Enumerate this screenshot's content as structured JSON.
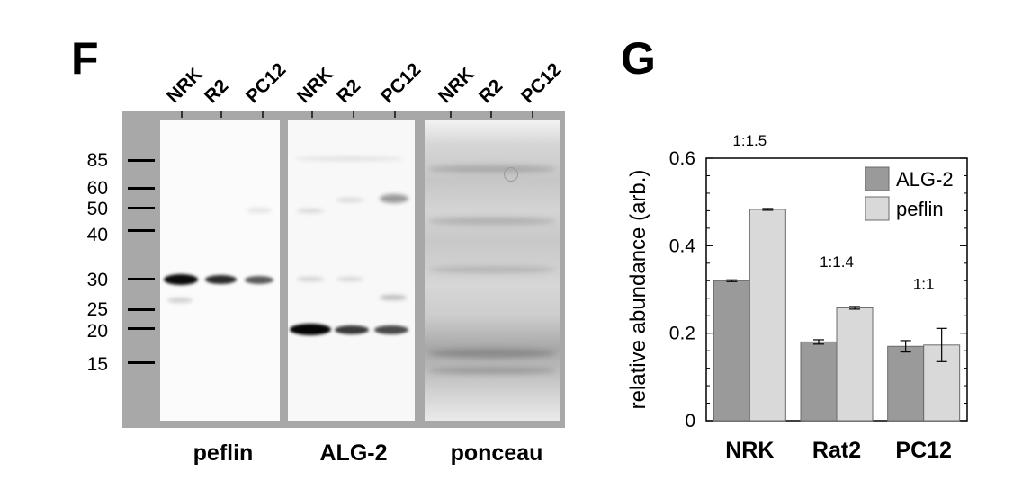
{
  "panel_f": {
    "letter": "F",
    "lane_groups": [
      {
        "lanes": [
          "NRK",
          "R2",
          "PC12"
        ],
        "label": "peflin"
      },
      {
        "lanes": [
          "NRK",
          "R2",
          "PC12"
        ],
        "label": "ALG-2"
      },
      {
        "lanes": [
          "NRK",
          "R2",
          "PC12"
        ],
        "label": "ponceau"
      }
    ],
    "mw_markers": [
      "85",
      "60",
      "50",
      "40",
      "30",
      "25",
      "20",
      "15"
    ],
    "frame_color": "#a8a8a8"
  },
  "panel_g": {
    "letter": "G"
  },
  "chart_data": {
    "type": "bar",
    "categories": [
      "NRK",
      "Rat2",
      "PC12"
    ],
    "series": [
      {
        "name": "ALG-2",
        "values": [
          0.32,
          0.18,
          0.17
        ],
        "errors": [
          0.002,
          0.005,
          0.013
        ],
        "color": "#9a9a9a"
      },
      {
        "name": "peflin",
        "values": [
          0.483,
          0.258,
          0.173
        ],
        "errors": [
          0.002,
          0.003,
          0.038
        ],
        "color": "#d9d9d9"
      }
    ],
    "annotations": [
      "1:1.5",
      "1:1.4",
      "1:1"
    ],
    "ylabel": "relative abundance (arb.)",
    "xlabel": "",
    "ylim": [
      0,
      0.6
    ],
    "yticks": [
      "0",
      "0.2",
      "0.4",
      "0.6"
    ],
    "legend_position": "top-right",
    "grid": false
  }
}
